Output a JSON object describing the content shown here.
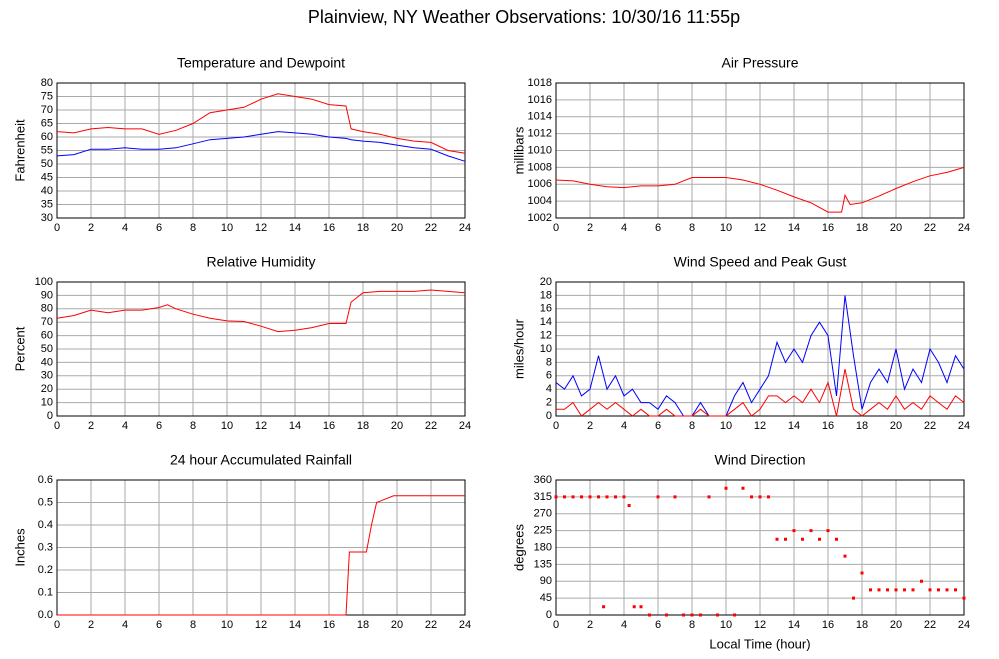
{
  "title": "Plainview, NY Weather Observations: 10/30/16 11:55p",
  "chart_data": [
    {
      "type": "line",
      "title": "Temperature and Dewpoint",
      "ylabel": "Fahrenheit",
      "x": [
        0,
        1,
        2,
        3,
        4,
        5,
        6,
        7,
        8,
        9,
        10,
        11,
        12,
        13,
        14,
        15,
        16,
        17,
        17.3,
        18,
        19,
        20,
        21,
        22,
        23,
        24
      ],
      "series": [
        {
          "color": "#ff0000",
          "values": [
            62,
            61.5,
            63,
            63.5,
            63,
            63,
            61,
            62.5,
            65,
            69,
            70,
            71,
            74,
            76,
            75,
            74,
            72,
            71.5,
            63,
            62,
            61,
            59.5,
            58.5,
            58,
            55,
            54
          ]
        },
        {
          "color": "#0000ff",
          "values": [
            53,
            53.5,
            55.5,
            55.5,
            56,
            55.5,
            55.5,
            56,
            57.5,
            59,
            59.5,
            60,
            61,
            62,
            61.5,
            61,
            60,
            59.5,
            59,
            58.5,
            58,
            57,
            56,
            55.5,
            53,
            51
          ]
        }
      ],
      "xlim": [
        0,
        24
      ],
      "xticks": [
        0,
        2,
        4,
        6,
        8,
        10,
        12,
        14,
        16,
        18,
        20,
        22,
        24
      ],
      "ylim": [
        30,
        80
      ],
      "yticks": [
        30,
        35,
        40,
        45,
        50,
        55,
        60,
        65,
        70,
        75,
        80
      ],
      "grid": true
    },
    {
      "type": "line",
      "title": "Air Pressure",
      "ylabel": "millibars",
      "x": [
        0,
        1,
        2,
        3,
        4,
        5,
        6,
        7,
        8,
        9,
        10,
        11,
        12,
        13,
        14,
        15,
        16,
        16.8,
        17,
        17.3,
        18,
        19,
        20,
        21,
        22,
        23,
        24
      ],
      "series": [
        {
          "color": "#ff0000",
          "values": [
            1006.5,
            1006.4,
            1006,
            1005.7,
            1005.6,
            1005.8,
            1005.8,
            1006,
            1006.8,
            1006.8,
            1006.8,
            1006.5,
            1006,
            1005.3,
            1004.5,
            1003.8,
            1002.7,
            1002.7,
            1004.7,
            1003.6,
            1003.8,
            1004.6,
            1005.5,
            1006.3,
            1007,
            1007.4,
            1008
          ]
        }
      ],
      "xlim": [
        0,
        24
      ],
      "xticks": [
        0,
        2,
        4,
        6,
        8,
        10,
        12,
        14,
        16,
        18,
        20,
        22,
        24
      ],
      "ylim": [
        1002,
        1018
      ],
      "yticks": [
        1002,
        1004,
        1006,
        1008,
        1010,
        1012,
        1014,
        1016,
        1018
      ],
      "grid": true
    },
    {
      "type": "line",
      "title": "Relative Humidity",
      "ylabel": "Percent",
      "x": [
        0,
        1,
        2,
        3,
        4,
        5,
        6,
        6.5,
        7,
        8,
        9,
        10,
        11,
        12,
        13,
        14,
        15,
        16,
        17,
        17.3,
        18,
        19,
        20,
        21,
        22,
        23,
        24
      ],
      "series": [
        {
          "color": "#ff0000",
          "values": [
            73,
            75,
            79,
            77,
            79,
            79,
            81,
            83,
            80,
            76,
            73,
            71,
            70.5,
            67,
            63,
            64,
            66,
            69,
            69,
            85,
            92,
            93,
            93,
            93,
            94,
            93,
            92
          ]
        }
      ],
      "xlim": [
        0,
        24
      ],
      "xticks": [
        0,
        2,
        4,
        6,
        8,
        10,
        12,
        14,
        16,
        18,
        20,
        22,
        24
      ],
      "ylim": [
        0,
        100
      ],
      "yticks": [
        0,
        10,
        20,
        30,
        40,
        50,
        60,
        70,
        80,
        90,
        100
      ],
      "grid": true
    },
    {
      "type": "line",
      "title": "Wind Speed and Peak Gust",
      "ylabel": "miles/hour",
      "x": [
        0,
        0.5,
        1,
        1.5,
        2,
        2.5,
        3,
        3.5,
        4,
        4.5,
        5,
        5.5,
        6,
        6.5,
        7,
        7.5,
        8,
        8.5,
        9,
        9.5,
        10,
        10.5,
        11,
        11.5,
        12,
        12.5,
        13,
        13.5,
        14,
        14.5,
        15,
        15.5,
        16,
        16.5,
        17,
        17.5,
        18,
        18.5,
        19,
        19.5,
        20,
        20.5,
        21,
        21.5,
        22,
        22.5,
        23,
        23.5,
        24
      ],
      "series": [
        {
          "color": "#0000ff",
          "values": [
            5,
            4,
            6,
            3,
            4,
            9,
            4,
            6,
            3,
            4,
            2,
            2,
            1,
            3,
            2,
            0,
            0,
            2,
            0,
            0,
            0,
            3,
            5,
            2,
            4,
            6,
            11,
            8,
            10,
            8,
            12,
            14,
            12,
            3,
            18,
            9,
            1,
            5,
            7,
            5,
            10,
            4,
            7,
            5,
            10,
            8,
            5,
            9,
            7
          ]
        },
        {
          "color": "#ff0000",
          "values": [
            1,
            1,
            2,
            0,
            1,
            2,
            1,
            2,
            1,
            0,
            1,
            0,
            0,
            1,
            0,
            0,
            0,
            1,
            0,
            0,
            0,
            1,
            2,
            0,
            1,
            3,
            3,
            2,
            3,
            2,
            4,
            2,
            5,
            0,
            7,
            1,
            0,
            1,
            2,
            1,
            3,
            1,
            2,
            1,
            3,
            2,
            1,
            3,
            2
          ]
        }
      ],
      "xlim": [
        0,
        24
      ],
      "xticks": [
        0,
        2,
        4,
        6,
        8,
        10,
        12,
        14,
        16,
        18,
        20,
        22,
        24
      ],
      "ylim": [
        0,
        20
      ],
      "yticks": [
        0,
        2,
        4,
        6,
        8,
        10,
        12,
        14,
        16,
        18,
        20
      ],
      "grid": true
    },
    {
      "type": "line",
      "title": "24 hour Accumulated Rainfall",
      "ylabel": "Inches",
      "x": [
        0,
        17,
        17.2,
        18.2,
        18.5,
        18.8,
        19.8,
        24
      ],
      "series": [
        {
          "color": "#ff0000",
          "values": [
            0,
            0,
            0.28,
            0.28,
            0.4,
            0.5,
            0.53,
            0.53
          ]
        }
      ],
      "xlim": [
        0,
        24
      ],
      "xticks": [
        0,
        2,
        4,
        6,
        8,
        10,
        12,
        14,
        16,
        18,
        20,
        22,
        24
      ],
      "ylim": [
        0,
        0.6
      ],
      "yticks": [
        {
          "value": 0,
          "label": "0.0"
        },
        0.1,
        0.2,
        0.3,
        0.4,
        0.5,
        0.6
      ],
      "grid": true
    },
    {
      "type": "scatter",
      "title": "Wind Direction",
      "ylabel": "degrees",
      "xlabel": "Local Time (hour)",
      "x": [
        0,
        0.5,
        1,
        1.5,
        2,
        2.5,
        2.8,
        3,
        3.5,
        4,
        4.3,
        4.6,
        5,
        5.5,
        6,
        6.5,
        7,
        7.5,
        8,
        8.5,
        9,
        9.5,
        10,
        10.5,
        11,
        11.5,
        12,
        12.5,
        13,
        13.5,
        14,
        14.5,
        15,
        15.5,
        16,
        16.5,
        17,
        17.5,
        18,
        18.5,
        19,
        19.5,
        20,
        20.5,
        21,
        21.5,
        22,
        22.5,
        23,
        23.5,
        24
      ],
      "series": [
        {
          "color": "#ff0000",
          "values": [
            315,
            315,
            315,
            315,
            315,
            315,
            22,
            315,
            315,
            315,
            292,
            22,
            22,
            0,
            315,
            0,
            315,
            0,
            0,
            0,
            315,
            0,
            338,
            0,
            338,
            315,
            315,
            315,
            202,
            202,
            225,
            202,
            225,
            202,
            225,
            202,
            157,
            45,
            112,
            67,
            67,
            67,
            67,
            67,
            67,
            90,
            67,
            67,
            67,
            67,
            45
          ]
        }
      ],
      "xlim": [
        0,
        24
      ],
      "xticks": [
        0,
        2,
        4,
        6,
        8,
        10,
        12,
        14,
        16,
        18,
        20,
        22,
        24
      ],
      "ylim": [
        0,
        360
      ],
      "yticks": [
        0,
        45,
        90,
        135,
        180,
        225,
        270,
        315,
        360
      ],
      "grid": true
    }
  ]
}
